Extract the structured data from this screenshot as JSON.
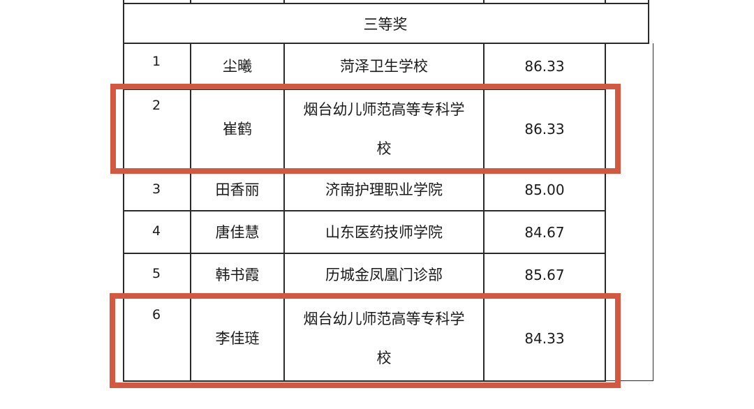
{
  "section_title": "三等奖",
  "rows": [
    {
      "index": "1",
      "name": "尘曦",
      "school": [
        "菏泽卫生学校"
      ],
      "score": "86.33",
      "highlighted": false
    },
    {
      "index": "2",
      "name": "崔鹤",
      "school": [
        "烟台幼儿师范高等专科学",
        "校"
      ],
      "score": "86.33",
      "highlighted": true
    },
    {
      "index": "3",
      "name": "田香丽",
      "school": [
        "济南护理职业学院"
      ],
      "score": "85.00",
      "highlighted": false
    },
    {
      "index": "4",
      "name": "唐佳慧",
      "school": [
        "山东医药技师学院"
      ],
      "score": "84.67",
      "highlighted": false
    },
    {
      "index": "5",
      "name": "韩书霞",
      "school": [
        "历城金凤凰门诊部"
      ],
      "score": "85.67",
      "highlighted": false
    },
    {
      "index": "6",
      "name": "李佳琏",
      "school": [
        "烟台幼儿师范高等专科学",
        "校"
      ],
      "score": "84.33",
      "highlighted": true
    }
  ],
  "colors": {
    "highlight_box": "#d4573f",
    "grid": "#2a2a2a"
  }
}
